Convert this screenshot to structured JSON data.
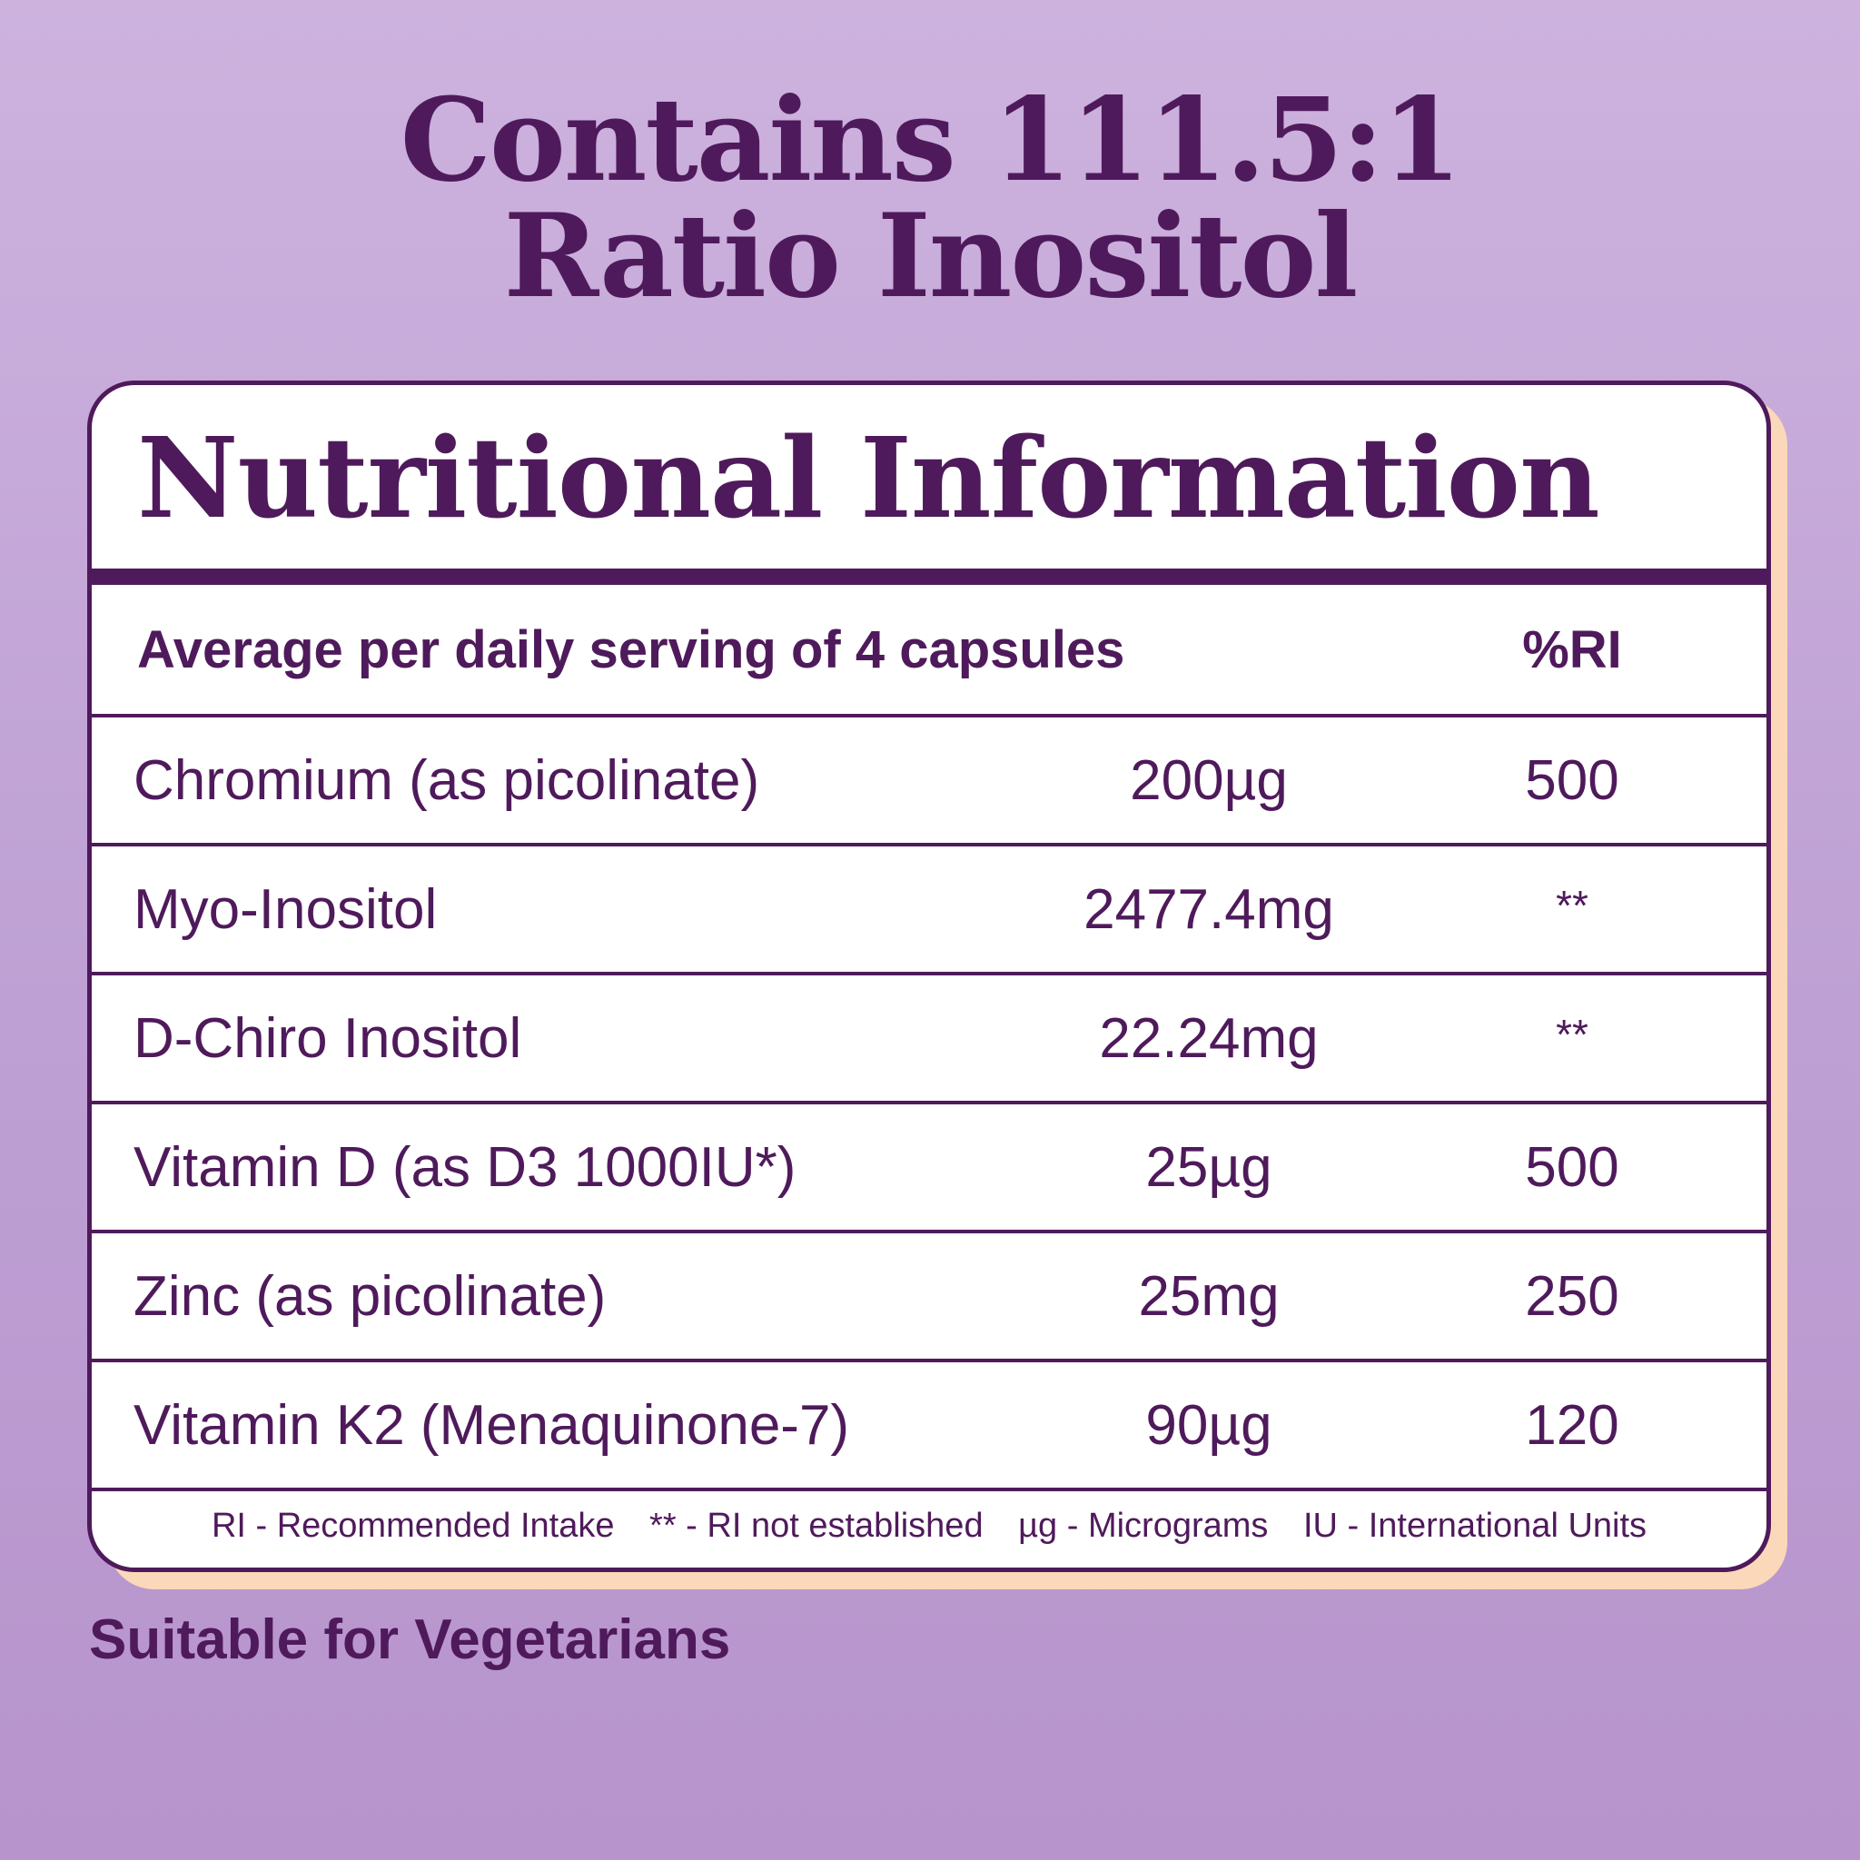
{
  "headline": {
    "line1": "Contains 111.5:1",
    "line2": "Ratio Inositol"
  },
  "panel": {
    "title": "Nutritional Information",
    "header": {
      "label": "Average per daily serving of 4 capsules",
      "ri_label": "%RI"
    },
    "rows": [
      {
        "name": "Chromium (as picolinate)",
        "amount": "200µg",
        "ri": "500"
      },
      {
        "name": "Myo-Inositol",
        "amount": "2477.4mg",
        "ri": "**"
      },
      {
        "name": "D-Chiro Inositol",
        "amount": "22.24mg",
        "ri": "**"
      },
      {
        "name": "Vitamin D (as D3 1000IU*)",
        "amount": "25µg",
        "ri": "500"
      },
      {
        "name": "Zinc (as picolinate)",
        "amount": "25mg",
        "ri": "250"
      },
      {
        "name": "Vitamin K2 (Menaquinone-7)",
        "amount": "90µg",
        "ri": "120"
      }
    ],
    "footnotes": [
      "RI - Recommended Intake",
      "** - RI not established",
      "µg - Micrograms",
      "IU - International Units"
    ]
  },
  "suitable": "Suitable for Vegetarians",
  "colors": {
    "primary": "#4f1a5b",
    "background_top": "#cdb2de",
    "background_bottom": "#b794cc",
    "card_shadow": "#fbd8b9",
    "card": "#ffffff"
  }
}
